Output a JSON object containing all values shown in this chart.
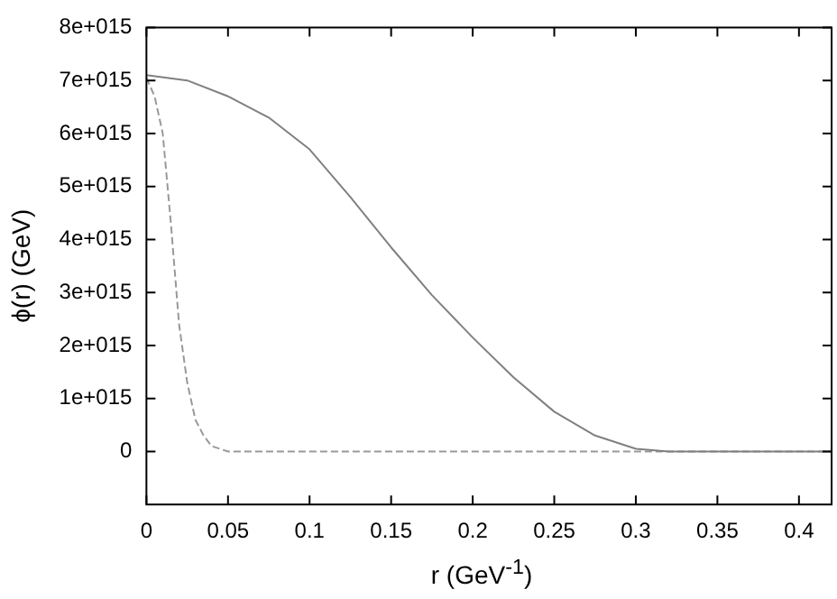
{
  "chart_data": {
    "type": "line",
    "xlabel": "r (GeV$^{-1}$)",
    "ylabel": "ϕ(r) (GeV)",
    "xlim": [
      0,
      0.42
    ],
    "xticks": [
      0,
      0.05,
      0.1,
      0.15,
      0.2,
      0.25,
      0.3,
      0.35,
      0.4
    ],
    "ylim": [
      -1000000000000000.0,
      8000000000000000.0
    ],
    "yticks": [
      {
        "value": 0,
        "label": "0"
      },
      {
        "value": 1000000000000000.0,
        "label": "1e+015"
      },
      {
        "value": 2000000000000000.0,
        "label": "2e+015"
      },
      {
        "value": 3000000000000000.0,
        "label": "3e+015"
      },
      {
        "value": 4000000000000000.0,
        "label": "4e+015"
      },
      {
        "value": 5000000000000000.0,
        "label": "5e+015"
      },
      {
        "value": 6000000000000000.0,
        "label": "6e+015"
      },
      {
        "value": 7000000000000000.0,
        "label": "7e+015"
      },
      {
        "value": 8000000000000000.0,
        "label": "8e+015"
      }
    ],
    "grid": false,
    "legend": false,
    "marker": "none",
    "series": [
      {
        "color": "#808080",
        "line_style": "solid",
        "x": [
          0,
          0.025,
          0.05,
          0.075,
          0.1,
          0.125,
          0.15,
          0.175,
          0.2,
          0.225,
          0.25,
          0.275,
          0.3,
          0.32,
          0.42
        ],
        "values": [
          7100000000000000.0,
          7000000000000000.0,
          6700000000000000.0,
          6300000000000000.0,
          5700000000000000.0,
          4800000000000000.0,
          3850000000000000.0,
          2950000000000000.0,
          2150000000000000.0,
          1400000000000000.0,
          750000000000000.0,
          300000000000000.0,
          50000000000000.0,
          0,
          0
        ]
      },
      {
        "color": "#999999",
        "line_style": "dashed",
        "x": [
          0,
          0.005,
          0.01,
          0.015,
          0.02,
          0.025,
          0.03,
          0.035,
          0.04,
          0.05,
          0.42
        ],
        "values": [
          7050000000000000.0,
          6700000000000000.0,
          6000000000000000.0,
          4300000000000000.0,
          2400000000000000.0,
          1300000000000000.0,
          600000000000000.0,
          300000000000000.0,
          100000000000000.0,
          0,
          0
        ]
      }
    ]
  }
}
